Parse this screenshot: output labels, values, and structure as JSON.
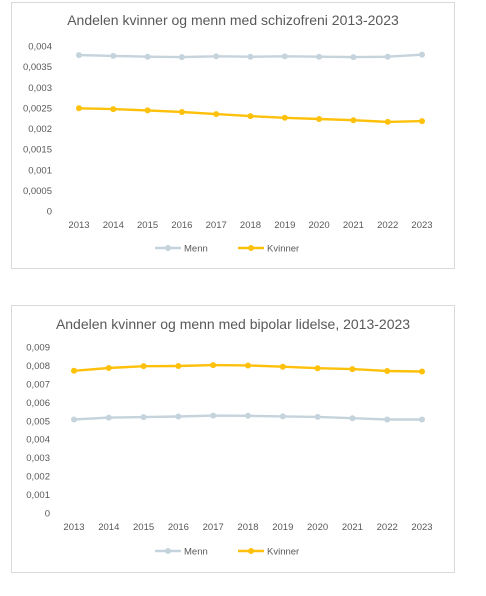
{
  "chart_data": [
    {
      "type": "line",
      "title": "Andelen kvinner og menn med schizofreni 2013-2023",
      "categories": [
        "2013",
        "2014",
        "2015",
        "2016",
        "2017",
        "2018",
        "2019",
        "2020",
        "2021",
        "2022",
        "2023"
      ],
      "ylim": [
        0,
        0.004
      ],
      "yticks": [
        "0",
        "0,0005",
        "0,001",
        "0,0015",
        "0,002",
        "0,0025",
        "0,003",
        "0,0035",
        "0,004"
      ],
      "legend_position": "bottom",
      "grid": false,
      "series": [
        {
          "name": "Menn",
          "color": "#c5d3dc",
          "values": [
            0.00378,
            0.00376,
            0.00374,
            0.00373,
            0.00375,
            0.00374,
            0.00375,
            0.00374,
            0.00373,
            0.00374,
            0.00379
          ]
        },
        {
          "name": "Kvinner",
          "color": "#fdc00b",
          "values": [
            0.00249,
            0.00247,
            0.00244,
            0.0024,
            0.00235,
            0.0023,
            0.00226,
            0.00223,
            0.0022,
            0.00216,
            0.00218
          ]
        }
      ]
    },
    {
      "type": "line",
      "title": "Andelen kvinner og menn med bipolar lidelse, 2013-2023",
      "categories": [
        "2013",
        "2014",
        "2015",
        "2016",
        "2017",
        "2018",
        "2019",
        "2020",
        "2021",
        "2022",
        "2023"
      ],
      "ylim": [
        0,
        0.009
      ],
      "yticks": [
        "0",
        "0,001",
        "0,002",
        "0,003",
        "0,004",
        "0,005",
        "0,006",
        "0,007",
        "0,008",
        "0,009"
      ],
      "legend_position": "bottom",
      "grid": false,
      "series": [
        {
          "name": "Menn",
          "color": "#c5d3dc",
          "values": [
            0.00507,
            0.00517,
            0.0052,
            0.00523,
            0.00528,
            0.00527,
            0.00524,
            0.00521,
            0.00514,
            0.00507,
            0.00507
          ]
        },
        {
          "name": "Kvinner",
          "color": "#fdc00b",
          "values": [
            0.00771,
            0.00786,
            0.00796,
            0.00797,
            0.00802,
            0.008,
            0.00793,
            0.00785,
            0.0078,
            0.0077,
            0.00767
          ]
        }
      ]
    }
  ]
}
